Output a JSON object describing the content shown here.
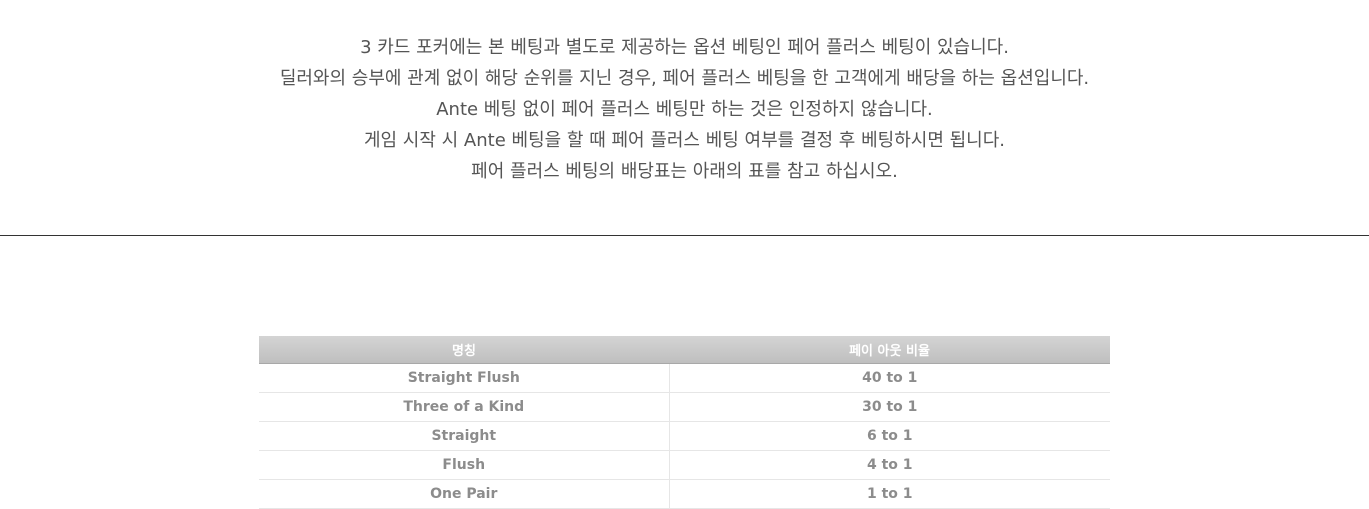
{
  "intro": {
    "lines": [
      "3 카드 포커에는 본 베팅과 별도로 제공하는 옵션 베팅인 페어 플러스 베팅이 있습니다.",
      "딜러와의 승부에 관계 없이 해당 순위를 지닌 경우, 페어 플러스 베팅을 한 고객에게 배당을 하는 옵션입니다.",
      "Ante 베팅 없이 페어 플러스 베팅만 하는 것은 인정하지 않습니다.",
      "게임 시작 시 Ante 베팅을 할 때 페어 플러스 베팅 여부를 결정 후 베팅하시면 됩니다.",
      "페어 플러스 베팅의 배당표는 아래의 표를 참고 하십시오."
    ]
  },
  "payout_table": {
    "headers": {
      "name": "명칭",
      "payout": "페이 아웃 비율"
    },
    "rows": [
      {
        "name": "Straight Flush",
        "payout": "40 to 1"
      },
      {
        "name": "Three of a Kind",
        "payout": "30 to 1"
      },
      {
        "name": "Straight",
        "payout": "6 to 1"
      },
      {
        "name": "Flush",
        "payout": "4 to 1"
      },
      {
        "name": "One Pair",
        "payout": "1 to 1"
      }
    ]
  },
  "colors": {
    "intro_text": "#555555",
    "divider": "#333333",
    "header_bg": "#c8c8c8",
    "header_text": "#ffffff",
    "cell_text": "#8c8c8c",
    "cell_border": "#e6e6e6"
  }
}
